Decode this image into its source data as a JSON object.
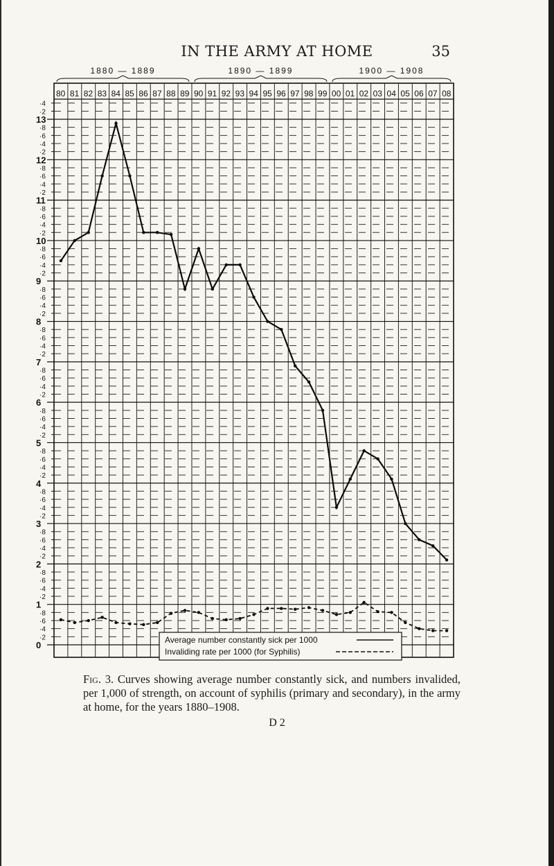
{
  "page": {
    "running_head": "IN THE ARMY AT HOME",
    "page_number": "35",
    "caption_label": "Fig. 3.",
    "caption_text": "Curves showing average number constantly sick, and numbers invalided, per 1,000 of strength, on account of syphilis (primary and secondary), in the army at home, for the years 1880–1908.",
    "signature": "D 2"
  },
  "chart_data": {
    "type": "line",
    "decade_brackets": [
      "1880 — 1889",
      "1890 — 1899",
      "1900 — 1908"
    ],
    "categories": [
      "80",
      "81",
      "82",
      "83",
      "84",
      "85",
      "86",
      "87",
      "88",
      "89",
      "90",
      "91",
      "92",
      "93",
      "94",
      "95",
      "96",
      "97",
      "98",
      "99",
      "00",
      "01",
      "02",
      "03",
      "04",
      "05",
      "06",
      "07",
      "08"
    ],
    "y_ticks": [
      "13",
      "12",
      "11",
      "10",
      "9",
      "8",
      "7",
      "6",
      "5",
      "4",
      "3",
      "2",
      "1",
      "0"
    ],
    "y_minor_ticks": [
      "·8",
      "·6",
      "·4",
      "·2"
    ],
    "ylim": [
      0,
      13.4
    ],
    "grid": true,
    "legend_position": "bottom-center",
    "series": [
      {
        "name": "Average number constantly sick per 1000",
        "style": "solid",
        "values": [
          9.5,
          10.0,
          10.2,
          11.6,
          12.9,
          11.6,
          10.2,
          10.2,
          10.15,
          8.8,
          9.8,
          8.8,
          9.4,
          9.4,
          8.6,
          8.0,
          7.8,
          6.9,
          6.5,
          5.8,
          3.4,
          4.1,
          4.8,
          4.6,
          4.1,
          3.0,
          2.6,
          2.45,
          2.1
        ]
      },
      {
        "name": "Invaliding rate per 1000 (for Syphilis)",
        "style": "dotted",
        "values": [
          0.62,
          0.55,
          0.6,
          0.68,
          0.55,
          0.52,
          0.5,
          0.55,
          0.78,
          0.85,
          0.8,
          0.65,
          0.62,
          0.65,
          0.75,
          0.9,
          0.9,
          0.88,
          0.92,
          0.85,
          0.75,
          0.8,
          1.05,
          0.82,
          0.8,
          0.55,
          0.4,
          0.35,
          0.35
        ]
      }
    ]
  }
}
